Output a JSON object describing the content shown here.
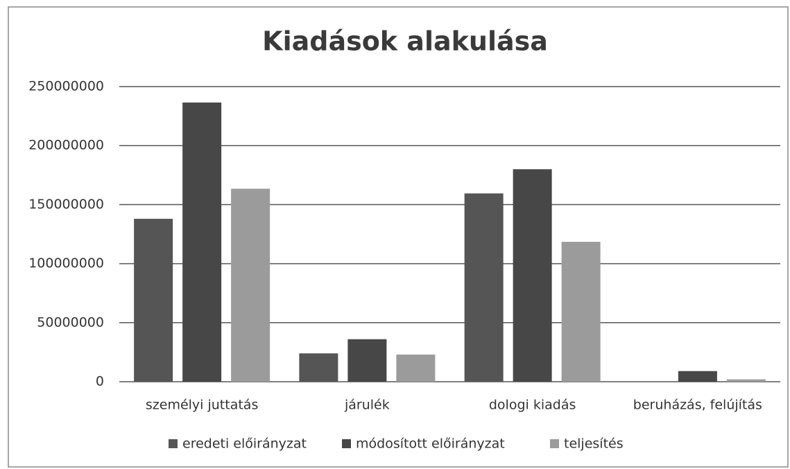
{
  "chart_data": {
    "type": "bar",
    "title": "Kiadások alakulása",
    "categories": [
      "személyi juttatás",
      "járulék",
      "dologi kiadás",
      "beruházás, felújítás"
    ],
    "series": [
      {
        "name": "eredeti előirányzat",
        "color": "#555555",
        "values": [
          138000000,
          24000000,
          159500000,
          0
        ]
      },
      {
        "name": "módosított előirányzat",
        "color": "#474747",
        "values": [
          236500000,
          36000000,
          180000000,
          9000000
        ]
      },
      {
        "name": "teljesítés",
        "color": "#9b9b9b",
        "values": [
          163500000,
          23000000,
          118500000,
          2000000
        ]
      }
    ],
    "ylim": [
      0,
      250000000
    ],
    "yticks": [
      0,
      50000000,
      100000000,
      150000000,
      200000000,
      250000000
    ],
    "grid": true,
    "legend": "bottom"
  }
}
